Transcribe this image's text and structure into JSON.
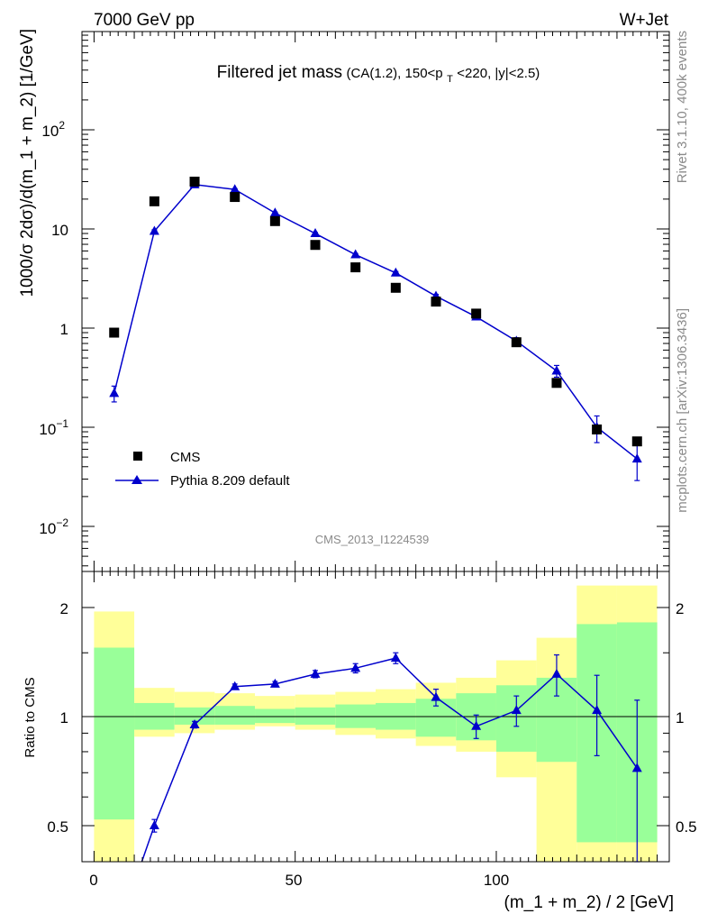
{
  "header": {
    "left": "7000 GeV pp",
    "right": "W+Jet"
  },
  "main_title": {
    "big": "Filtered jet mass",
    "small_a": "(CA(1.2), 150<p",
    "small_sub": "T",
    "small_b": "<220, |y|<2.5)"
  },
  "side_text": {
    "rivet": "Rivet 3.1.10,  400k events",
    "mcplots": "mcplots.cern.ch [arXiv:1306.3436]"
  },
  "analysis_label": "CMS_2013_I1224539",
  "axes": {
    "y_main_label": "1000/σ 2dσ)/d(m_1 + m_2) [1/GeV]",
    "y_ratio_label": "Ratio to CMS",
    "x_label": "(m_1 + m_2) / 2 [GeV]",
    "x_ticks": [
      "0",
      "50",
      "100"
    ],
    "y_main_ticks": [
      {
        "base": "10",
        "exp": "2"
      },
      {
        "base": "10",
        "exp": ""
      },
      {
        "base": "1",
        "exp": ""
      },
      {
        "base": "10",
        "exp": "−1"
      },
      {
        "base": "10",
        "exp": "−2"
      }
    ],
    "y_ratio_ticks": [
      "2",
      "1",
      "0.5"
    ]
  },
  "legend": {
    "cms": "CMS",
    "pythia": "Pythia 8.209 default"
  },
  "colors": {
    "cms": "#000000",
    "pythia": "#0000cc",
    "band_inner": "#99ff99",
    "band_outer": "#ffff99"
  },
  "chart_data": {
    "type": "scatter",
    "x_range": [
      -3,
      143
    ],
    "y_log": true,
    "y_range": [
      0.0035,
      1000
    ],
    "ratio_range": [
      0.42,
      2.35
    ],
    "x_edges": [
      0,
      10,
      20,
      30,
      40,
      50,
      60,
      70,
      80,
      90,
      100,
      110,
      120,
      130,
      140
    ],
    "series": [
      {
        "name": "CMS",
        "x": [
          5,
          15,
          25,
          35,
          45,
          55,
          65,
          75,
          85,
          95,
          105,
          115,
          125,
          135
        ],
        "values": [
          0.9,
          19,
          30,
          21,
          12,
          6.9,
          4.1,
          2.55,
          1.85,
          1.4,
          0.72,
          0.28,
          0.095,
          0.072
        ],
        "band_inner": [
          [
            0.52,
            1.55
          ],
          [
            0.92,
            1.09
          ],
          [
            0.95,
            1.06
          ],
          [
            0.95,
            1.07
          ],
          [
            0.96,
            1.05
          ],
          [
            0.95,
            1.06
          ],
          [
            0.93,
            1.08
          ],
          [
            0.92,
            1.09
          ],
          [
            0.88,
            1.12
          ],
          [
            0.86,
            1.16
          ],
          [
            0.8,
            1.22
          ],
          [
            0.75,
            1.28
          ],
          [
            0.45,
            1.8
          ],
          [
            0.45,
            1.82
          ]
        ],
        "band_outer": [
          [
            0.38,
            1.95
          ],
          [
            0.88,
            1.2
          ],
          [
            0.9,
            1.17
          ],
          [
            0.92,
            1.16
          ],
          [
            0.94,
            1.14
          ],
          [
            0.92,
            1.15
          ],
          [
            0.89,
            1.17
          ],
          [
            0.87,
            1.19
          ],
          [
            0.83,
            1.24
          ],
          [
            0.8,
            1.28
          ],
          [
            0.68,
            1.43
          ],
          [
            0.38,
            1.65
          ],
          [
            0.38,
            2.3
          ],
          [
            0.38,
            2.3
          ]
        ]
      },
      {
        "name": "Pythia 8.209 default",
        "x": [
          5,
          15,
          25,
          35,
          45,
          55,
          65,
          75,
          85,
          95,
          105,
          115,
          125,
          135
        ],
        "values": [
          0.22,
          9.5,
          28,
          25,
          14.5,
          9,
          5.5,
          3.6,
          2.1,
          1.3,
          0.74,
          0.37,
          0.1,
          0.048
        ],
        "errors": [
          0.04,
          0.3,
          0.6,
          0.5,
          0.3,
          0.2,
          0.15,
          0.12,
          0.09,
          0.07,
          0.06,
          0.05,
          0.03,
          0.019
        ],
        "ratio": [
          0.24,
          0.5,
          0.95,
          1.21,
          1.23,
          1.31,
          1.36,
          1.45,
          1.13,
          0.94,
          1.04,
          1.31,
          1.04,
          0.72
        ],
        "ratio_errors": [
          0.03,
          0.02,
          0.02,
          0.02,
          0.02,
          0.03,
          0.04,
          0.05,
          0.06,
          0.07,
          0.1,
          0.17,
          0.26,
          0.39
        ]
      }
    ]
  }
}
